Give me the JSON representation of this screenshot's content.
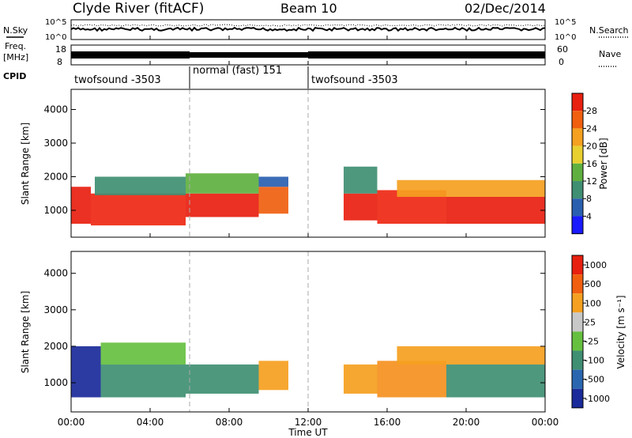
{
  "header": {
    "station": "Clyde River (fitACF)",
    "beam": "Beam 10",
    "date": "02/Dec/2014"
  },
  "nsky_panel": {
    "left_label": "N.Sky",
    "right_label": "N.Search",
    "left_ticks": [
      "10^5",
      "10^0"
    ],
    "right_ticks": [
      "10^5",
      "10^0"
    ]
  },
  "freq_panel": {
    "left_label_1": "Freq.",
    "left_label_2": "[MHz]",
    "right_label": "Nave",
    "left_ticks": [
      "18",
      "8"
    ],
    "right_ticks": [
      "60",
      "0"
    ]
  },
  "cpid": {
    "label": "CPID",
    "segments": [
      {
        "name": "twofsound -3503",
        "start_hr": 0,
        "end_hr": 6
      },
      {
        "name": "normal (fast) 151",
        "start_hr": 6,
        "end_hr": 12
      },
      {
        "name": "twofsound -3503",
        "start_hr": 12,
        "end_hr": 24
      }
    ]
  },
  "x_axis": {
    "label": "Time UT",
    "ticks": [
      "00:00",
      "04:00",
      "08:00",
      "12:00",
      "16:00",
      "20:00",
      "00:00"
    ]
  },
  "chart_data": [
    {
      "type": "heatmap",
      "name": "power",
      "ylabel": "Slant Range [km]",
      "ylim": [
        200,
        4600
      ],
      "yticks": [
        1000,
        2000,
        3000,
        4000
      ],
      "xlim_hr": [
        0,
        24
      ],
      "colorbar": {
        "label": "Power [dB]",
        "ticks": [
          "4",
          "8",
          "12",
          "16",
          "20",
          "24",
          "28"
        ],
        "colors": [
          "#1a1aff",
          "#2a5fb0",
          "#3f8f73",
          "#60b040",
          "#e8d030",
          "#f5a020",
          "#f06010",
          "#e82010"
        ]
      },
      "regions": [
        {
          "t0": 0.0,
          "t1": 1.0,
          "r0": 600,
          "r1": 1700,
          "color": "#e82010"
        },
        {
          "t0": 1.0,
          "t1": 5.8,
          "r0": 550,
          "r1": 1500,
          "color": "#ee2814"
        },
        {
          "t0": 1.2,
          "t1": 5.8,
          "r0": 1450,
          "r1": 2000,
          "color": "#3f8f73"
        },
        {
          "t0": 5.8,
          "t1": 9.5,
          "r0": 800,
          "r1": 1500,
          "color": "#e82010"
        },
        {
          "t0": 5.8,
          "t1": 9.5,
          "r0": 1500,
          "r1": 2100,
          "color": "#60b040"
        },
        {
          "t0": 9.5,
          "t1": 11.0,
          "r0": 900,
          "r1": 1700,
          "color": "#f06010"
        },
        {
          "t0": 9.5,
          "t1": 11.0,
          "r0": 1700,
          "r1": 2000,
          "color": "#2a5fb0"
        },
        {
          "t0": 13.8,
          "t1": 15.5,
          "r0": 700,
          "r1": 1500,
          "color": "#e82010"
        },
        {
          "t0": 13.8,
          "t1": 15.5,
          "r0": 1500,
          "r1": 2300,
          "color": "#3f8f73"
        },
        {
          "t0": 15.5,
          "t1": 19.0,
          "r0": 600,
          "r1": 1600,
          "color": "#ee2814"
        },
        {
          "t0": 19.0,
          "t1": 24.0,
          "r0": 600,
          "r1": 1400,
          "color": "#e82010"
        },
        {
          "t0": 16.5,
          "t1": 24.0,
          "r0": 1400,
          "r1": 1900,
          "color": "#f5a020"
        }
      ]
    },
    {
      "type": "heatmap",
      "name": "velocity",
      "ylabel": "Slant Range [km]",
      "ylim": [
        200,
        4600
      ],
      "yticks": [
        1000,
        2000,
        3000,
        4000
      ],
      "xlim_hr": [
        0,
        24
      ],
      "colorbar": {
        "label": "Velocity [m s⁻¹]",
        "ticks": [
          "1000",
          "500",
          "100",
          "25",
          "-25",
          "-100",
          "-500",
          "-1000"
        ],
        "colors": [
          "#1a2a9a",
          "#2a66b0",
          "#3f8f73",
          "#66c040",
          "#c8c8c8",
          "#f5a020",
          "#f06010",
          "#e82010"
        ]
      },
      "regions": [
        {
          "t0": 0.0,
          "t1": 1.5,
          "r0": 600,
          "r1": 2000,
          "color": "#1a2a9a"
        },
        {
          "t0": 1.5,
          "t1": 5.8,
          "r0": 600,
          "r1": 1500,
          "color": "#3f8f73"
        },
        {
          "t0": 1.5,
          "t1": 5.8,
          "r0": 1500,
          "r1": 2100,
          "color": "#66c040"
        },
        {
          "t0": 5.8,
          "t1": 9.5,
          "r0": 700,
          "r1": 1500,
          "color": "#3f8f73"
        },
        {
          "t0": 9.5,
          "t1": 11.0,
          "r0": 800,
          "r1": 1600,
          "color": "#f5a020"
        },
        {
          "t0": 13.8,
          "t1": 15.5,
          "r0": 700,
          "r1": 1500,
          "color": "#f5a020"
        },
        {
          "t0": 15.5,
          "t1": 19.0,
          "r0": 600,
          "r1": 1600,
          "color": "#f59020"
        },
        {
          "t0": 19.0,
          "t1": 24.0,
          "r0": 600,
          "r1": 1500,
          "color": "#3f8f73"
        },
        {
          "t0": 16.5,
          "t1": 24.0,
          "r0": 1500,
          "r1": 2000,
          "color": "#f5a020"
        }
      ]
    }
  ]
}
